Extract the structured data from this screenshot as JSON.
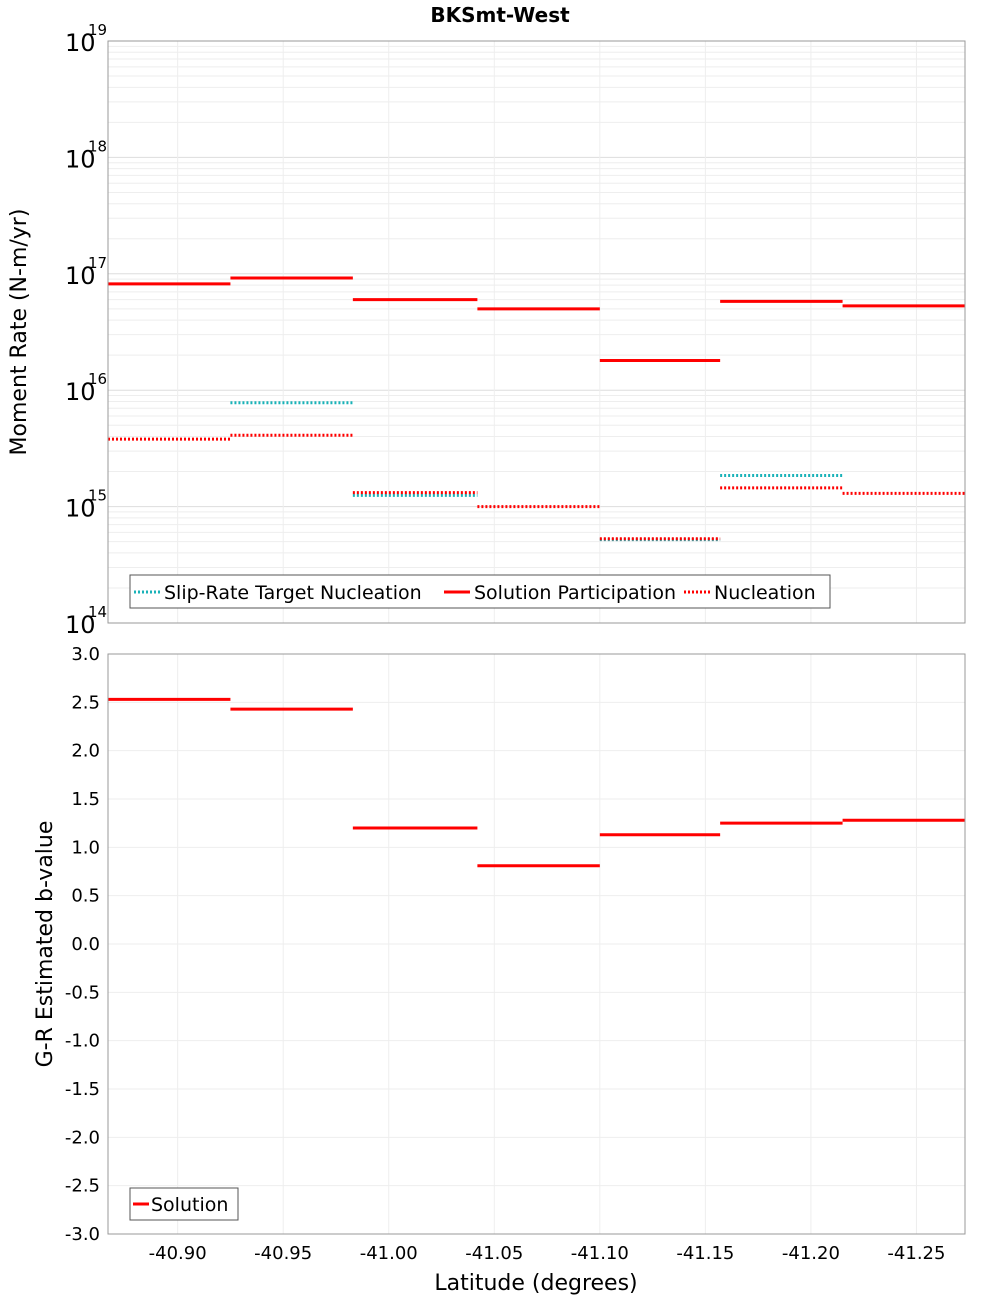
{
  "chart_data": [
    {
      "type": "line",
      "subtype": "step",
      "title": "BKSmt-West",
      "ylabel": "Moment Rate (N-m/yr)",
      "xlabel": "Latitude (degrees)",
      "yscale": "log",
      "ylim": [
        100000000000000.0,
        1e+19
      ],
      "xlim": [
        -40.867,
        -41.273
      ],
      "ytick_base": "10",
      "ytick_exponents": [
        "14",
        "15",
        "16",
        "17",
        "18",
        "19"
      ],
      "series": [
        {
          "name": "Slip-Rate Target Nucleation",
          "color": "#19b2b8",
          "style": "dotted",
          "segments": [
            {
              "x0": -40.925,
              "x1": -40.983,
              "y": 7800000000000000.0
            },
            {
              "x0": -40.983,
              "x1": -41.042,
              "y": 1250000000000000.0
            },
            {
              "x0": -41.1,
              "x1": -41.157,
              "y": 520000000000000.0
            },
            {
              "x0": -41.157,
              "x1": -41.215,
              "y": 1850000000000000.0
            }
          ]
        },
        {
          "name": "Solution Participation",
          "color": "#ff0000",
          "style": "solid",
          "segments": [
            {
              "x0": -40.867,
              "x1": -40.925,
              "y": 8.2e+16
            },
            {
              "x0": -40.925,
              "x1": -40.983,
              "y": 9.2e+16
            },
            {
              "x0": -40.983,
              "x1": -41.042,
              "y": 6e+16
            },
            {
              "x0": -41.042,
              "x1": -41.1,
              "y": 5e+16
            },
            {
              "x0": -41.1,
              "x1": -41.157,
              "y": 1.8e+16
            },
            {
              "x0": -41.157,
              "x1": -41.215,
              "y": 5.8e+16
            },
            {
              "x0": -41.215,
              "x1": -41.273,
              "y": 5.3e+16
            }
          ]
        },
        {
          "name": "Nucleation",
          "color": "#ff0000",
          "style": "dotted",
          "segments": [
            {
              "x0": -40.867,
              "x1": -40.925,
              "y": 3800000000000000.0
            },
            {
              "x0": -40.925,
              "x1": -40.983,
              "y": 4100000000000000.0
            },
            {
              "x0": -40.983,
              "x1": -41.042,
              "y": 1320000000000000.0
            },
            {
              "x0": -41.042,
              "x1": -41.1,
              "y": 1000000000000000.0
            },
            {
              "x0": -41.1,
              "x1": -41.157,
              "y": 530000000000000.0
            },
            {
              "x0": -41.157,
              "x1": -41.215,
              "y": 1450000000000000.0
            },
            {
              "x0": -41.215,
              "x1": -41.273,
              "y": 1300000000000000.0
            }
          ]
        }
      ],
      "legend": [
        "Slip-Rate Target Nucleation",
        "Solution Participation",
        "Nucleation"
      ],
      "legend_position": "bottom-left",
      "grid": true
    },
    {
      "type": "line",
      "subtype": "step",
      "ylabel": "G-R Estimated b-value",
      "xlabel": "Latitude (degrees)",
      "ylim": [
        -3.0,
        3.0
      ],
      "xlim": [
        -40.867,
        -41.273
      ],
      "yticks": [
        "3.0",
        "2.5",
        "2.0",
        "1.5",
        "1.0",
        "0.5",
        "0.0",
        "-0.5",
        "-1.0",
        "-1.5",
        "-2.0",
        "-2.5",
        "-3.0"
      ],
      "xticks": [
        "-40.90",
        "-40.95",
        "-41.00",
        "-41.05",
        "-41.10",
        "-41.15",
        "-41.20",
        "-41.25"
      ],
      "series": [
        {
          "name": "Solution",
          "color": "#ff0000",
          "style": "solid",
          "segments": [
            {
              "x0": -40.867,
              "x1": -40.925,
              "y": 2.53
            },
            {
              "x0": -40.925,
              "x1": -40.983,
              "y": 2.43
            },
            {
              "x0": -40.983,
              "x1": -41.042,
              "y": 1.2
            },
            {
              "x0": -41.042,
              "x1": -41.1,
              "y": 0.81
            },
            {
              "x0": -41.1,
              "x1": -41.157,
              "y": 1.13
            },
            {
              "x0": -41.157,
              "x1": -41.215,
              "y": 1.25
            },
            {
              "x0": -41.215,
              "x1": -41.273,
              "y": 1.28
            }
          ]
        }
      ],
      "legend": [
        "Solution"
      ],
      "legend_position": "bottom-left",
      "grid": true
    }
  ]
}
